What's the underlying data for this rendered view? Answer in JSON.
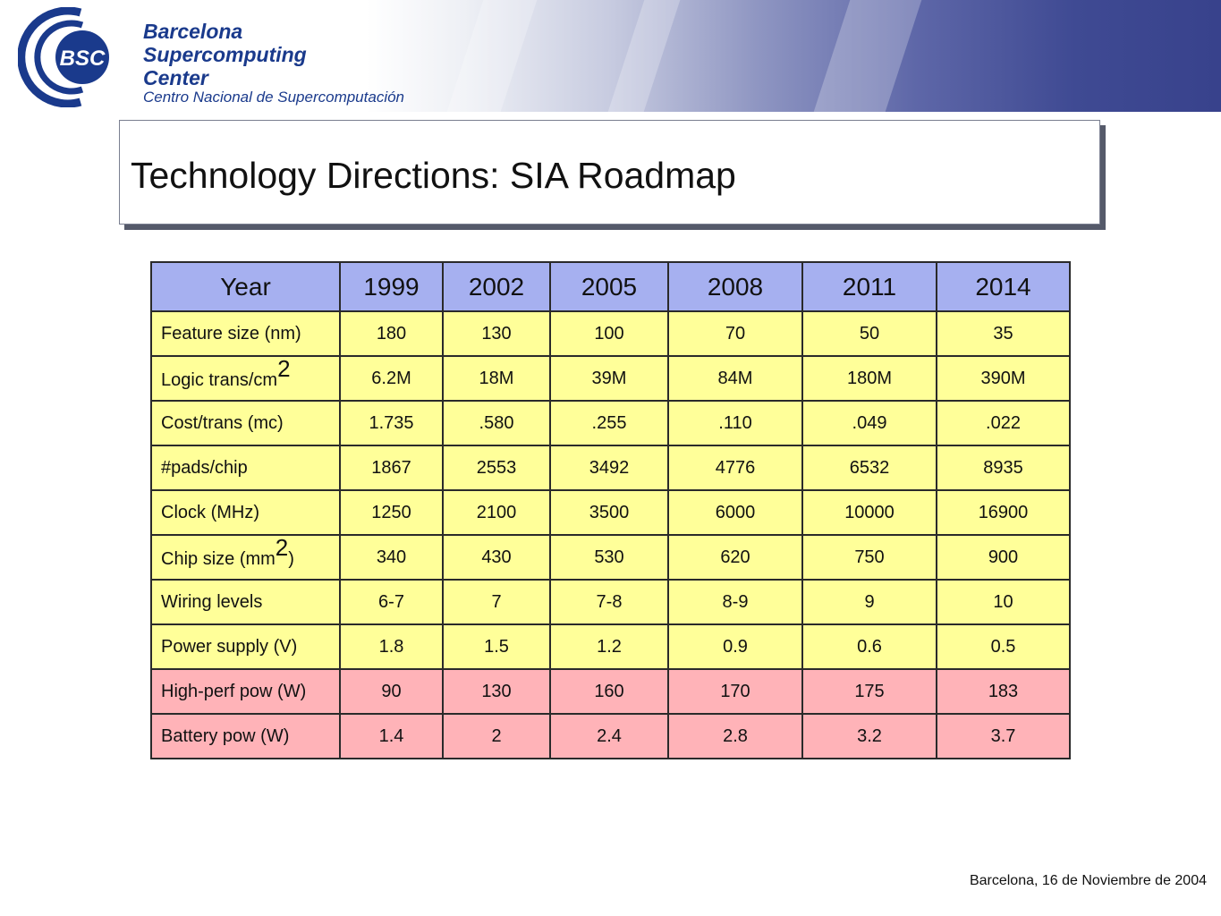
{
  "header": {
    "logo_abbrev": "BSC",
    "org_line1": "Barcelona",
    "org_line2": "Supercomputing",
    "org_line3": "Center",
    "org_line4": "Centro Nacional de Supercomputación",
    "colors": {
      "brand": "#1a3a8c",
      "band": "#3f4a93"
    }
  },
  "title": "Technology Directions: SIA Roadmap",
  "table": {
    "header": [
      "Year",
      "1999",
      "2002",
      "2005",
      "2008",
      "2011",
      "2014"
    ],
    "rows": [
      {
        "label": "Feature size (nm)",
        "label_sup": "",
        "label_suffix": "",
        "values": [
          "180",
          "130",
          "100",
          "70",
          "50",
          "35"
        ],
        "color": "yellow"
      },
      {
        "label": "Logic trans/cm",
        "label_sup": "2",
        "label_suffix": "",
        "values": [
          "6.2M",
          "18M",
          "39M",
          "84M",
          "180M",
          "390M"
        ],
        "color": "yellow"
      },
      {
        "label": "Cost/trans (mc)",
        "label_sup": "",
        "label_suffix": "",
        "values": [
          "1.735",
          ".580",
          ".255",
          ".110",
          ".049",
          ".022"
        ],
        "color": "yellow"
      },
      {
        "label": "#pads/chip",
        "label_sup": "",
        "label_suffix": "",
        "values": [
          "1867",
          "2553",
          "3492",
          "4776",
          "6532",
          "8935"
        ],
        "color": "yellow"
      },
      {
        "label": "Clock (MHz)",
        "label_sup": "",
        "label_suffix": "",
        "values": [
          "1250",
          "2100",
          "3500",
          "6000",
          "10000",
          "16900"
        ],
        "color": "yellow"
      },
      {
        "label": "Chip size (mm",
        "label_sup": "2",
        "label_suffix": ")",
        "values": [
          "340",
          "430",
          "530",
          "620",
          "750",
          "900"
        ],
        "color": "yellow"
      },
      {
        "label": "Wiring levels",
        "label_sup": "",
        "label_suffix": "",
        "values": [
          "6-7",
          "7",
          "7-8",
          "8-9",
          "9",
          "10"
        ],
        "color": "yellow"
      },
      {
        "label": "Power supply (V)",
        "label_sup": "",
        "label_suffix": "",
        "values": [
          "1.8",
          "1.5",
          "1.2",
          "0.9",
          "0.6",
          "0.5"
        ],
        "color": "yellow"
      },
      {
        "label": "High-perf pow (W)",
        "label_sup": "",
        "label_suffix": "",
        "values": [
          "90",
          "130",
          "160",
          "170",
          "175",
          "183"
        ],
        "color": "pink"
      },
      {
        "label": "Battery pow (W)",
        "label_sup": "",
        "label_suffix": "",
        "values": [
          "1.4",
          "2",
          "2.4",
          "2.8",
          "3.2",
          "3.7"
        ],
        "color": "pink"
      }
    ],
    "colors": {
      "header": "#a6b0f0",
      "yellow": "#ffff99",
      "pink": "#ffb3b8"
    }
  },
  "footer": "Barcelona, 16 de Noviembre de 2004"
}
